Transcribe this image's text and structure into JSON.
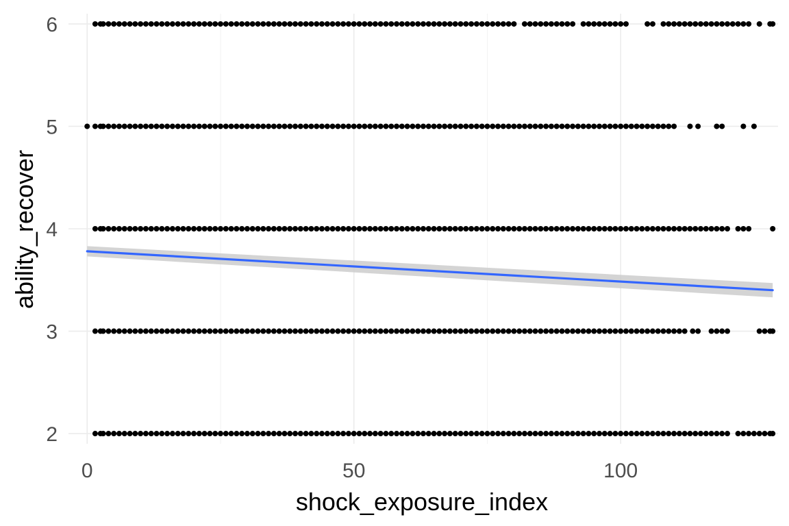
{
  "chart_data": {
    "type": "scatter",
    "title": "",
    "xlabel": "shock_exposure_index",
    "ylabel": "ability_recover",
    "xlim": [
      -3.5,
      129.5
    ],
    "ylim": [
      1.9,
      6.1
    ],
    "x_ticks": [
      0,
      50,
      100
    ],
    "y_ticks": [
      2,
      3,
      4,
      5,
      6
    ],
    "grid": true,
    "legend": "none",
    "point_color": "#000000",
    "series": [
      {
        "level": 6,
        "x": [
          1.5,
          2.5,
          3,
          4,
          5,
          6,
          7,
          8,
          9,
          10,
          11,
          12,
          13,
          14,
          15,
          16,
          17,
          18,
          19,
          20,
          21,
          22,
          23,
          24,
          25,
          26,
          27,
          28,
          29,
          30,
          31,
          32,
          33,
          34,
          35,
          36,
          37,
          38,
          39,
          40,
          41,
          42,
          43,
          44,
          45,
          46,
          47,
          48,
          49,
          50,
          51,
          52,
          53,
          54,
          55,
          56,
          57,
          58,
          59,
          60,
          61,
          62,
          63,
          64,
          65,
          66,
          67,
          68,
          69,
          70,
          71,
          72,
          73,
          74,
          75,
          76,
          77,
          78,
          79,
          80,
          82,
          83,
          84,
          85,
          86,
          87,
          88,
          89,
          90,
          91,
          93,
          94,
          95,
          96,
          97,
          98,
          99,
          100,
          101,
          105,
          106,
          108,
          109,
          110,
          111,
          112,
          113,
          114,
          115,
          116,
          117,
          118,
          119,
          120,
          121,
          122,
          123,
          124,
          126,
          128,
          128.5
        ]
      },
      {
        "level": 5,
        "x": [
          0,
          1.5,
          2.5,
          3,
          4,
          5,
          6,
          7,
          8,
          9,
          10,
          11,
          12,
          13,
          14,
          15,
          16,
          17,
          18,
          19,
          20,
          21,
          22,
          23,
          24,
          25,
          26,
          27,
          28,
          29,
          30,
          31,
          32,
          33,
          34,
          35,
          36,
          37,
          38,
          39,
          40,
          41,
          42,
          43,
          44,
          45,
          46,
          47,
          48,
          49,
          50,
          51,
          52,
          53,
          54,
          55,
          56,
          57,
          58,
          59,
          60,
          61,
          62,
          63,
          64,
          65,
          66,
          67,
          68,
          69,
          70,
          71,
          72,
          73,
          74,
          75,
          76,
          77,
          78,
          79,
          80,
          81,
          82,
          83,
          84,
          85,
          86,
          87,
          88,
          89,
          90,
          91,
          92,
          93,
          94,
          95,
          96,
          97,
          98,
          99,
          100,
          101,
          102,
          103,
          104,
          105,
          106,
          107,
          108,
          109,
          110,
          113,
          114.5,
          118,
          119,
          123,
          125
        ]
      },
      {
        "level": 4,
        "x": [
          1.5,
          2.5,
          3,
          4,
          5,
          6,
          7,
          8,
          9,
          10,
          11,
          12,
          13,
          14,
          15,
          16,
          17,
          18,
          19,
          20,
          21,
          22,
          23,
          24,
          25,
          26,
          27,
          28,
          29,
          30,
          31,
          32,
          33,
          34,
          35,
          36,
          37,
          38,
          39,
          40,
          41,
          42,
          43,
          44,
          45,
          46,
          47,
          48,
          49,
          50,
          51,
          52,
          53,
          54,
          55,
          56,
          57,
          58,
          59,
          60,
          61,
          62,
          63,
          64,
          65,
          66,
          67,
          68,
          69,
          70,
          71,
          72,
          73,
          74,
          75,
          76,
          77,
          78,
          79,
          80,
          81,
          82,
          83,
          84,
          85,
          86,
          87,
          88,
          89,
          90,
          91,
          92,
          93,
          94,
          95,
          96,
          97,
          98,
          99,
          100,
          101,
          102,
          103,
          104,
          105,
          106,
          107,
          108,
          109,
          110,
          111,
          112,
          113,
          114,
          115,
          116,
          117,
          118,
          119,
          120,
          122,
          123,
          124,
          128.5
        ]
      },
      {
        "level": 3,
        "x": [
          1.5,
          2.5,
          3,
          4,
          5,
          6,
          7,
          8,
          9,
          10,
          11,
          12,
          13,
          14,
          15,
          16,
          17,
          18,
          19,
          20,
          21,
          22,
          23,
          24,
          25,
          26,
          27,
          28,
          29,
          30,
          31,
          32,
          33,
          34,
          35,
          36,
          37,
          38,
          39,
          40,
          41,
          42,
          43,
          44,
          45,
          46,
          47,
          48,
          49,
          50,
          51,
          52,
          53,
          54,
          55,
          56,
          57,
          58,
          59,
          60,
          61,
          62,
          63,
          64,
          65,
          66,
          67,
          68,
          69,
          70,
          71,
          72,
          73,
          74,
          75,
          76,
          77,
          78,
          79,
          80,
          81,
          82,
          83,
          84,
          85,
          86,
          87,
          88,
          89,
          90,
          91,
          92,
          93,
          94,
          95,
          96,
          97,
          98,
          99,
          100,
          101,
          102,
          103,
          104,
          105,
          106,
          107,
          108,
          109,
          110,
          111,
          112,
          113.5,
          114.5,
          117,
          118,
          119,
          120,
          126,
          127,
          128,
          128.5
        ]
      },
      {
        "level": 2,
        "x": [
          1.5,
          2.5,
          3,
          4,
          5,
          6,
          7,
          8,
          9,
          10,
          11,
          12,
          13,
          14,
          15,
          16,
          17,
          18,
          19,
          20,
          21,
          22,
          23,
          24,
          25,
          26,
          27,
          28,
          29,
          30,
          31,
          32,
          33,
          34,
          35,
          36,
          37,
          38,
          39,
          40,
          41,
          42,
          43,
          44,
          45,
          46,
          47,
          48,
          49,
          50,
          51,
          52,
          53,
          54,
          55,
          56,
          57,
          58,
          59,
          60,
          61,
          62,
          63,
          64,
          65,
          66,
          67,
          68,
          69,
          70,
          71,
          72,
          73,
          74,
          75,
          76,
          77,
          78,
          79,
          80,
          81,
          82,
          83,
          84,
          85,
          86,
          87,
          88,
          89,
          90,
          91,
          92,
          93,
          94,
          95,
          96,
          97,
          98,
          99,
          100,
          101,
          102,
          103,
          104,
          105,
          106,
          107,
          108,
          109,
          110,
          111,
          112,
          113,
          114,
          115,
          116,
          117,
          118,
          119,
          120,
          122,
          123,
          124,
          125,
          126,
          127,
          128,
          128.5
        ]
      }
    ],
    "trend": {
      "method": "linear",
      "color": "#3366ff",
      "ribbon_color": "#cccccc",
      "x": [
        0,
        128.5
      ],
      "y": [
        3.78,
        3.4
      ],
      "lower": [
        3.73,
        3.33
      ],
      "upper": [
        3.83,
        3.47
      ]
    }
  }
}
